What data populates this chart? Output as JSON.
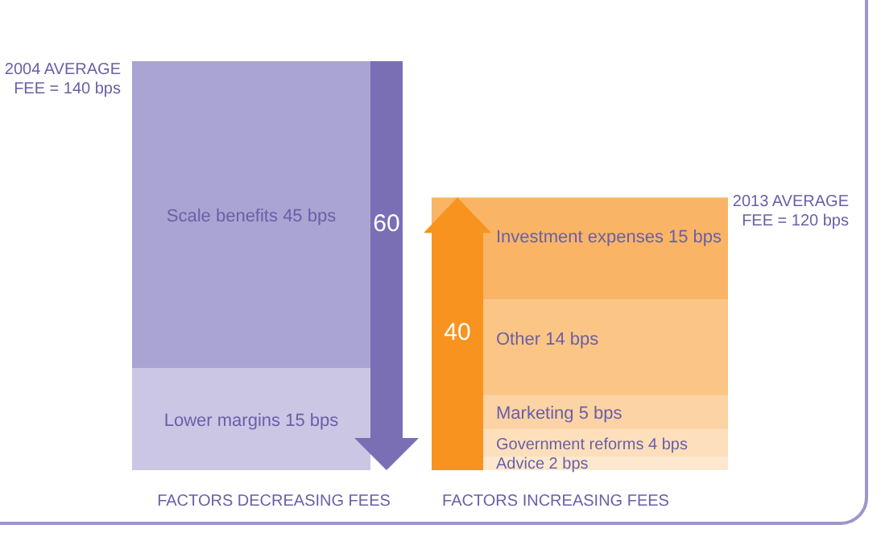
{
  "chart_data": {
    "type": "bar",
    "stacked": true,
    "categories": [
      "FACTORS DECREASING FEES",
      "FACTORS INCREASING FEES"
    ],
    "series": [
      {
        "name": "Lower margins",
        "color": "#cbc6e4",
        "values": [
          15,
          null
        ],
        "value_labels": [
          "15 bps",
          null
        ]
      },
      {
        "name": "Scale benefits",
        "color": "#aaa4d2",
        "values": [
          45,
          null
        ],
        "value_labels": [
          "45 bps",
          null
        ]
      },
      {
        "name": "Advice",
        "color": "#fde8cf",
        "values": [
          null,
          2
        ],
        "value_labels": [
          null,
          "2 bps"
        ]
      },
      {
        "name": "Government reforms",
        "color": "#fddfbb",
        "values": [
          null,
          4
        ],
        "value_labels": [
          null,
          "4 bps"
        ]
      },
      {
        "name": "Marketing",
        "color": "#fcd3a4",
        "values": [
          null,
          5
        ],
        "value_labels": [
          null,
          "5 bps"
        ]
      },
      {
        "name": "Other",
        "color": "#fbc585",
        "values": [
          null,
          14
        ],
        "value_labels": [
          null,
          "14 bps"
        ]
      },
      {
        "name": "Investment expenses",
        "color": "#f9b466",
        "values": [
          null,
          15
        ],
        "value_labels": [
          null,
          "15 bps"
        ]
      }
    ],
    "totals": [
      "60",
      "40"
    ],
    "annotations": [
      "2004 AVERAGE\nFEE = 140 bps",
      "2013 AVERAGE\nFEE = 120 bps"
    ]
  }
}
